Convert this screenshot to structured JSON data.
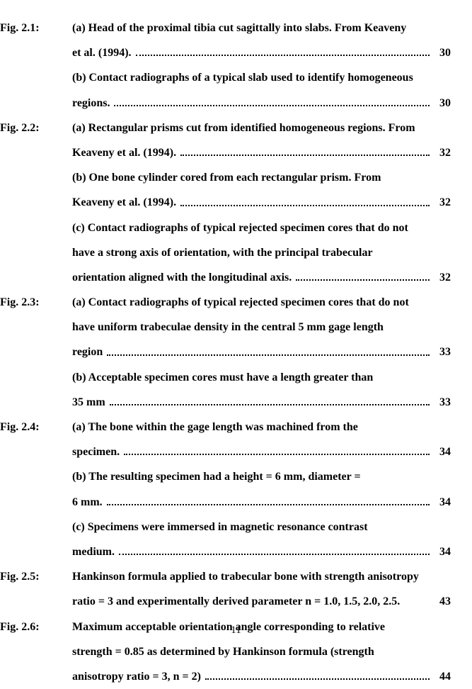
{
  "page_number": "11",
  "entries": [
    {
      "label": "Fig. 2.1:",
      "items": [
        {
          "lines": [
            "(a) Head of the proximal tibia cut sagittally into slabs.  From Keaveny",
            "et al. (1994)."
          ],
          "page": "30"
        },
        {
          "lines": [
            "(b) Contact radiographs of a typical slab used to identify homogeneous",
            "regions."
          ],
          "page": "30"
        }
      ]
    },
    {
      "label": "Fig. 2.2:",
      "items": [
        {
          "lines": [
            "(a) Rectangular prisms cut from identified homogeneous regions.  From",
            "Keaveny et al. (1994)."
          ],
          "page": "32"
        },
        {
          "lines": [
            "(b) One bone cylinder cored from each rectangular prism.  From",
            "Keaveny et al. (1994)."
          ],
          "page": "32"
        },
        {
          "lines": [
            "(c) Contact radiographs of typical rejected specimen cores that do not",
            "have a strong axis of orientation, with the principal trabecular",
            "orientation aligned with the longitudinal axis."
          ],
          "page": "32"
        }
      ]
    },
    {
      "label": "Fig. 2.3:",
      "items": [
        {
          "lines": [
            "(a) Contact radiographs of typical rejected specimen cores that do not",
            "have uniform trabeculae density in the central 5 mm gage length",
            "region"
          ],
          "page": "33"
        },
        {
          "lines": [
            "(b) Acceptable specimen cores must have a length greater than",
            "35 mm"
          ],
          "page": "33"
        }
      ]
    },
    {
      "label": "Fig. 2.4:",
      "items": [
        {
          "lines": [
            "(a) The bone within the gage length was machined from the",
            "specimen."
          ],
          "page": "34"
        },
        {
          "lines": [
            "(b) The resulting specimen had a height = 6 mm, diameter =",
            "6 mm."
          ],
          "page": "34"
        },
        {
          "lines": [
            "(c) Specimens were immersed in magnetic resonance contrast",
            "medium."
          ],
          "page": "34"
        }
      ]
    },
    {
      "label": "Fig. 2.5:",
      "items": [
        {
          "lines": [
            "Hankinson formula applied to trabecular bone with strength anisotropy",
            "ratio = 3 and experimentally derived parameter n = 1.0, 1.5, 2.0, 2.5."
          ],
          "page": "43",
          "nodots": true
        }
      ]
    },
    {
      "label": "Fig. 2.6:",
      "items": [
        {
          "lines": [
            "Maximum acceptable orientation angle corresponding to relative",
            "strength = 0.85 as determined by Hankinson formula (strength",
            "anisotropy ratio = 3, n = 2)"
          ],
          "page": "44"
        }
      ]
    }
  ]
}
